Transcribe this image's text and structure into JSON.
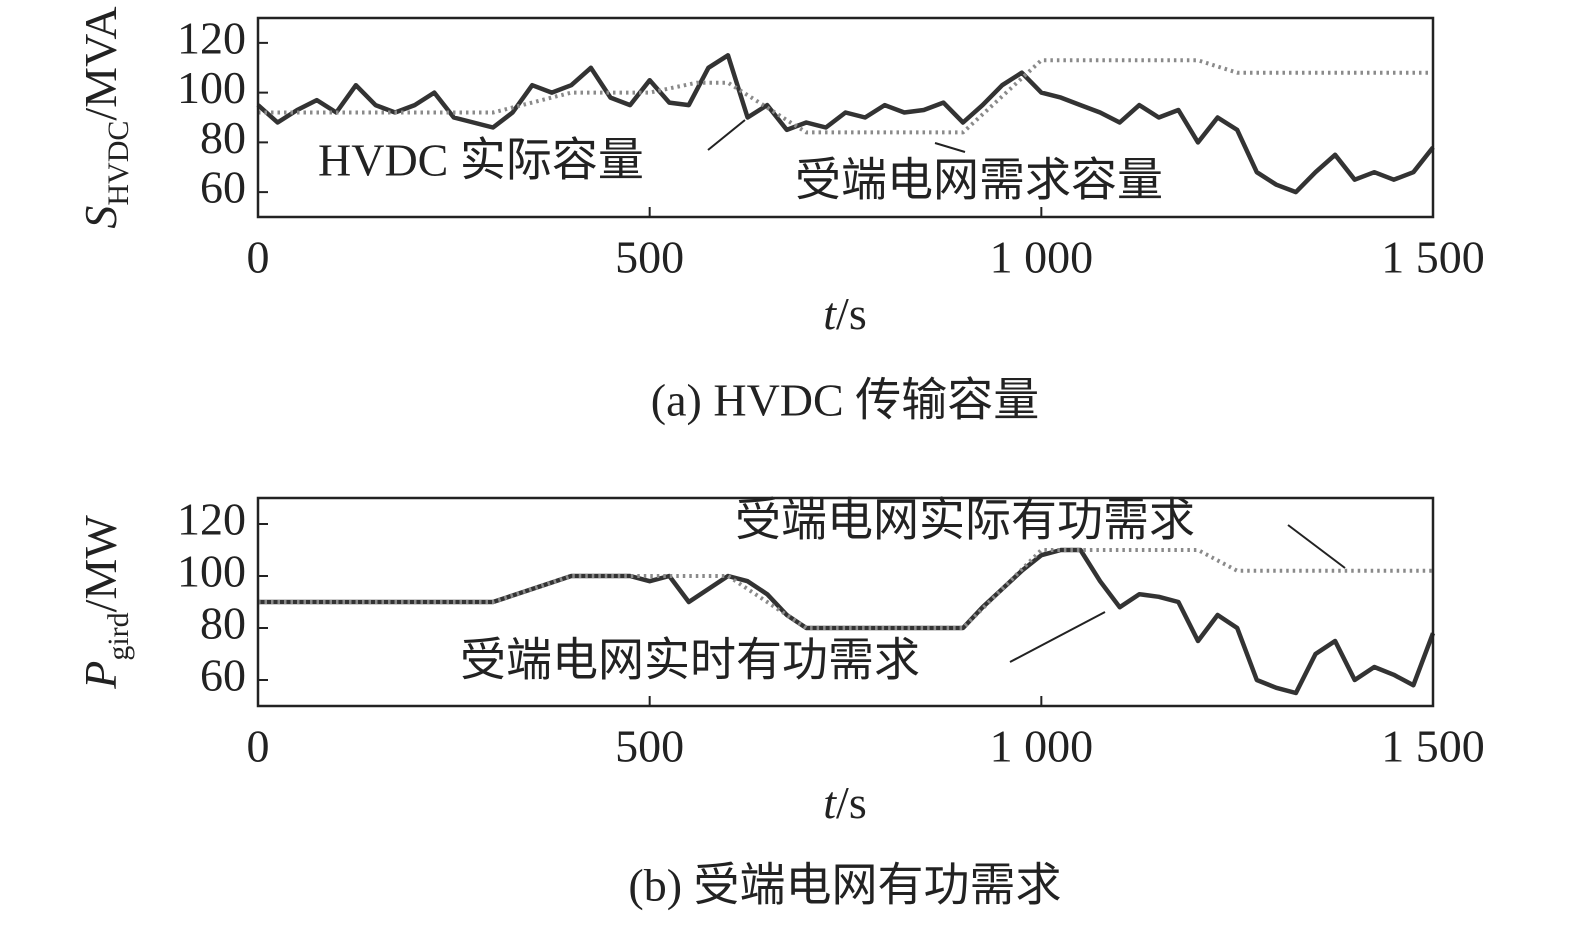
{
  "chart_data": [
    {
      "type": "line",
      "ylabel": "S",
      "ylabel_sub": "HVDC",
      "ylabel_unit": "/MVA",
      "xlabel": "t",
      "xlabel_unit": "/s",
      "caption": "(a) HVDC 传输容量",
      "xlim": [
        0,
        1500
      ],
      "xticks": [
        0,
        500,
        {
          "value": 1000,
          "label": "1 000"
        },
        {
          "value": 1500,
          "label": "1 500"
        }
      ],
      "ylim": [
        50,
        130
      ],
      "yticks": [
        60,
        80,
        100,
        120
      ],
      "series": [
        {
          "name": "HVDC 实际容量",
          "color": "#333333",
          "style": "solid",
          "x": [
            0,
            25,
            50,
            75,
            100,
            125,
            150,
            175,
            200,
            225,
            250,
            275,
            300,
            325,
            350,
            375,
            400,
            425,
            450,
            475,
            500,
            525,
            550,
            575,
            600,
            625,
            650,
            675,
            700,
            725,
            750,
            775,
            800,
            825,
            850,
            875,
            900,
            925,
            950,
            975,
            1000,
            1025,
            1050,
            1075,
            1100,
            1125,
            1150,
            1175,
            1200,
            1225,
            1250,
            1275,
            1300,
            1325,
            1350,
            1375,
            1400,
            1425,
            1450,
            1475,
            1500
          ],
          "values": [
            95,
            88,
            93,
            97,
            92,
            103,
            95,
            92,
            95,
            100,
            90,
            88,
            86,
            92,
            103,
            100,
            103,
            110,
            98,
            95,
            105,
            96,
            95,
            110,
            115,
            90,
            95,
            85,
            88,
            86,
            92,
            90,
            95,
            92,
            93,
            96,
            88,
            95,
            103,
            108,
            100,
            98,
            95,
            92,
            88,
            95,
            90,
            93,
            80,
            90,
            85,
            68,
            63,
            60,
            68,
            75,
            65,
            68,
            65,
            68,
            78
          ]
        },
        {
          "name": "受端电网需求容量",
          "color": "#8a8a8a",
          "style": "dotted",
          "x": [
            0,
            300,
            400,
            500,
            560,
            600,
            700,
            900,
            1000,
            1200,
            1250,
            1500
          ],
          "values": [
            92,
            92,
            100,
            100,
            104,
            104,
            84,
            84,
            113,
            113,
            108,
            108
          ]
        }
      ]
    },
    {
      "type": "line",
      "ylabel": "P",
      "ylabel_sub": "gird",
      "ylabel_unit": "/MW",
      "xlabel": "t",
      "xlabel_unit": "/s",
      "caption": "(b) 受端电网有功需求",
      "xlim": [
        0,
        1500
      ],
      "xticks": [
        0,
        500,
        {
          "value": 1000,
          "label": "1 000"
        },
        {
          "value": 1500,
          "label": "1 500"
        }
      ],
      "ylim": [
        50,
        130
      ],
      "yticks": [
        60,
        80,
        100,
        120
      ],
      "series": [
        {
          "name": "受端电网实时有功需求",
          "color": "#333333",
          "style": "solid",
          "x": [
            0,
            25,
            50,
            75,
            100,
            125,
            150,
            175,
            200,
            225,
            250,
            275,
            300,
            325,
            350,
            375,
            400,
            425,
            450,
            475,
            500,
            525,
            550,
            575,
            600,
            625,
            650,
            675,
            700,
            725,
            750,
            775,
            800,
            825,
            850,
            875,
            900,
            925,
            950,
            975,
            1000,
            1025,
            1050,
            1075,
            1100,
            1125,
            1150,
            1175,
            1200,
            1225,
            1250,
            1275,
            1300,
            1325,
            1350,
            1375,
            1400,
            1425,
            1450,
            1475,
            1500
          ],
          "values": [
            90,
            90,
            90,
            90,
            90,
            90,
            90,
            90,
            90,
            90,
            90,
            90,
            90,
            92.5,
            95,
            97.5,
            100,
            100,
            100,
            100,
            98,
            100,
            90,
            95,
            100,
            98,
            93,
            85,
            80,
            80,
            80,
            80,
            80,
            80,
            80,
            80,
            80,
            88,
            95,
            102,
            108,
            110,
            110,
            98,
            88,
            93,
            92,
            90,
            75,
            85,
            80,
            60,
            57,
            55,
            70,
            75,
            60,
            65,
            62,
            58,
            78
          ]
        },
        {
          "name": "受端电网实际有功需求",
          "color": "#8a8a8a",
          "style": "dotted",
          "x": [
            0,
            300,
            400,
            600,
            700,
            900,
            1000,
            1200,
            1250,
            1500
          ],
          "values": [
            90,
            90,
            100,
            100,
            80,
            80,
            110,
            110,
            102,
            102
          ]
        }
      ]
    }
  ]
}
